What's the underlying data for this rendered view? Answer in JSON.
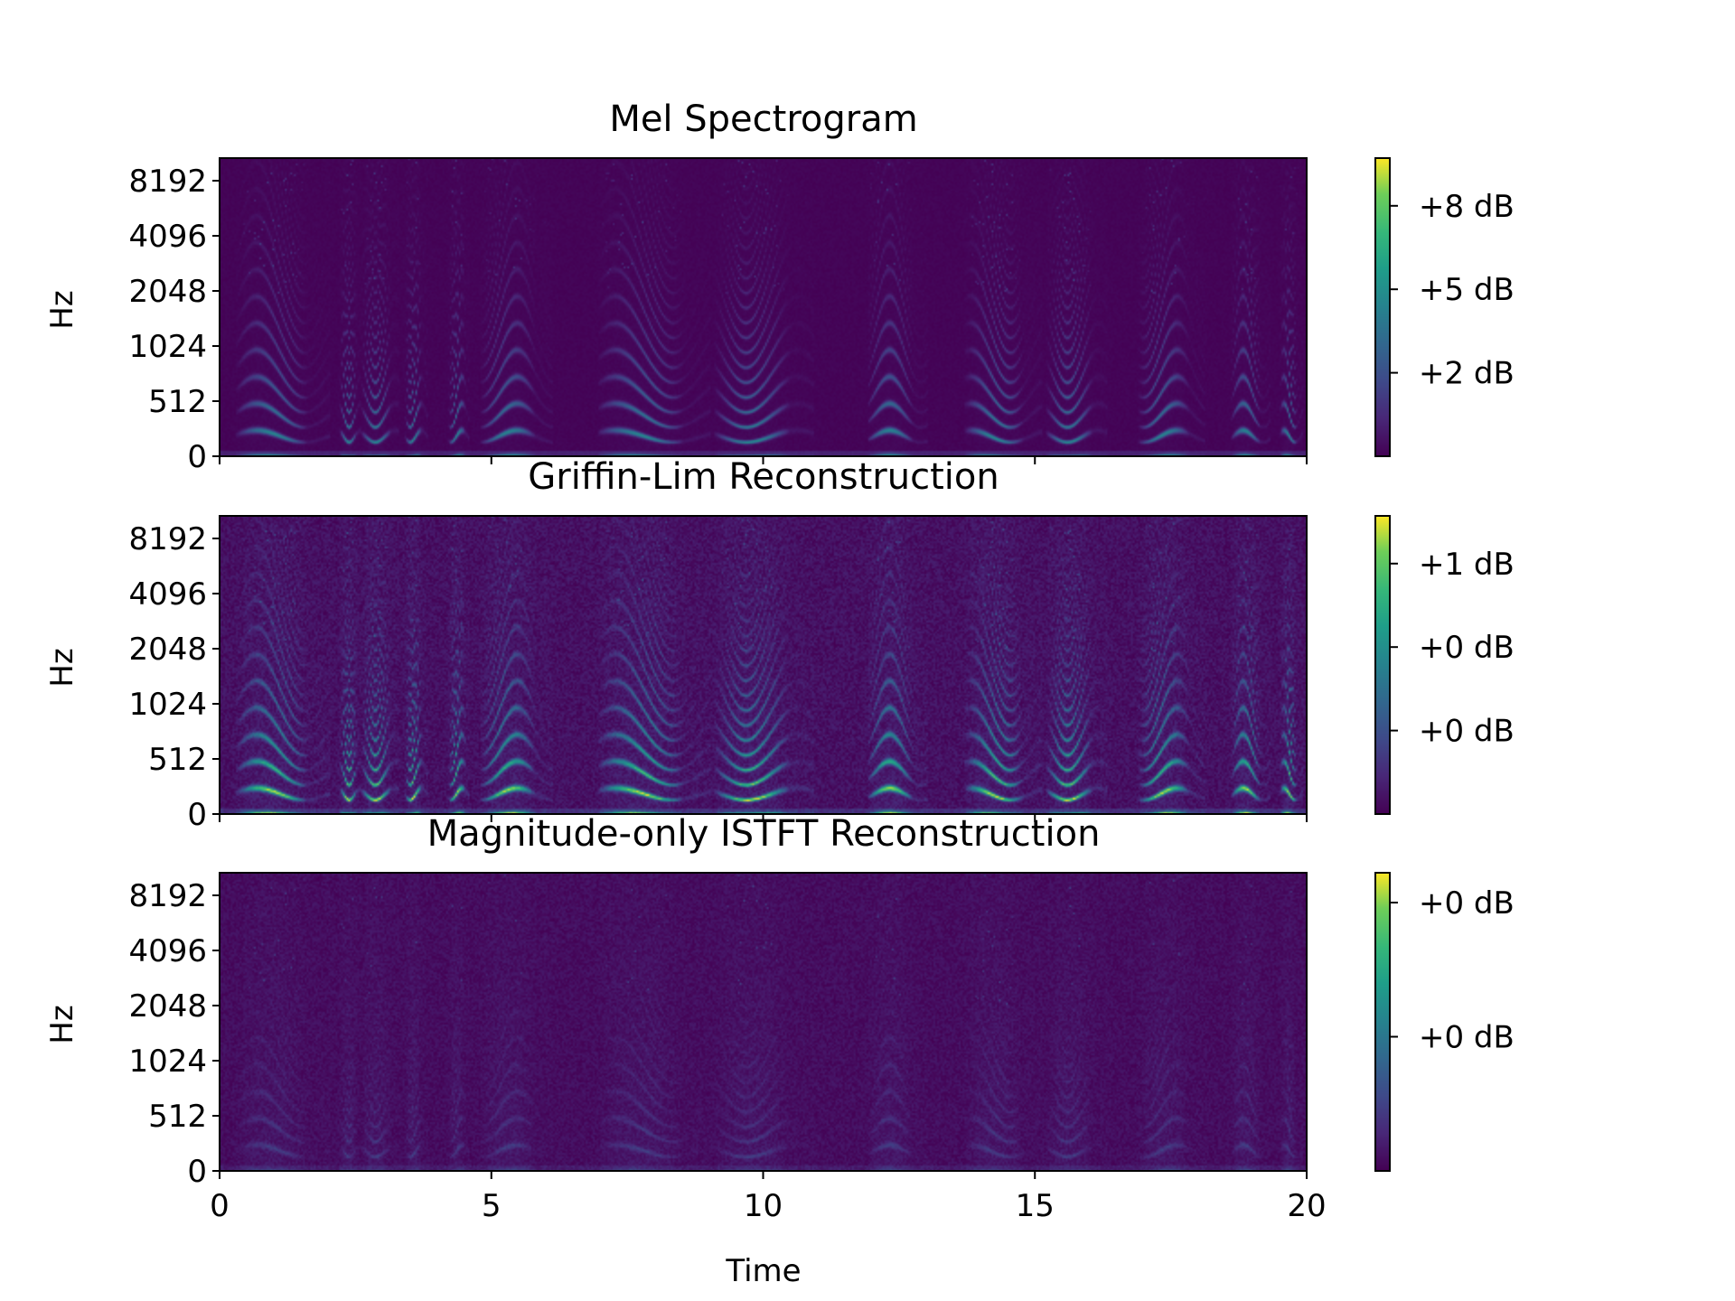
{
  "chart_data": [
    {
      "type": "heatmap",
      "title": "Mel Spectrogram",
      "ylabel": "Hz",
      "xlabel": "",
      "y_ticks": [
        "0",
        "512",
        "1024",
        "2048",
        "4096",
        "8192"
      ],
      "x_range": [
        0,
        20
      ],
      "x_ticks": [],
      "colormap": "viridis",
      "colorbar_ticks": [
        "+2 dB",
        "+5 dB",
        "+8 dB"
      ],
      "colorbar_tick_positions": [
        0.28,
        0.56,
        0.84
      ],
      "intensity": 0.85,
      "noise": 0.02,
      "harmonic_focus": 0.7
    },
    {
      "type": "heatmap",
      "title": "Griffin-Lim Reconstruction",
      "ylabel": "Hz",
      "xlabel": "",
      "y_ticks": [
        "0",
        "512",
        "1024",
        "2048",
        "4096",
        "8192"
      ],
      "x_range": [
        0,
        20
      ],
      "x_ticks": [],
      "colormap": "viridis",
      "colorbar_ticks": [
        "+0 dB",
        "+0 dB",
        "+1 dB"
      ],
      "colorbar_tick_positions": [
        0.28,
        0.56,
        0.84
      ],
      "intensity": 1.0,
      "noise": 0.09,
      "harmonic_focus": 1.0
    },
    {
      "type": "heatmap",
      "title": "Magnitude-only ISTFT Reconstruction",
      "ylabel": "Hz",
      "xlabel": "Time",
      "y_ticks": [
        "0",
        "512",
        "1024",
        "2048",
        "4096",
        "8192"
      ],
      "x_range": [
        0,
        20
      ],
      "x_ticks": [
        "0",
        "5",
        "10",
        "15",
        "20"
      ],
      "colormap": "viridis",
      "colorbar_ticks": [
        "+0 dB",
        "+0 dB"
      ],
      "colorbar_tick_positions": [
        0.45,
        0.9
      ],
      "intensity": 0.45,
      "noise": 0.07,
      "harmonic_focus": 0.35
    }
  ]
}
